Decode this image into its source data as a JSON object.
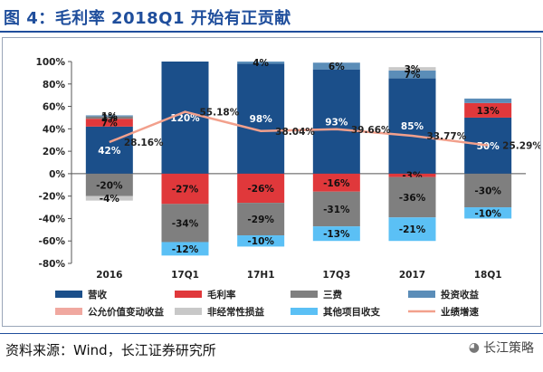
{
  "title": "图 4：毛利率 2018Q1 开始有正贡献",
  "source": "资料来源：Wind，长江证券研究所",
  "watermark": "长江策略",
  "chart_data": {
    "type": "bar",
    "stacked": true,
    "categories": [
      "2016",
      "17Q1",
      "17H1",
      "17Q3",
      "2017",
      "18Q1"
    ],
    "ylim": [
      -80,
      100
    ],
    "yticks": [
      -80,
      -60,
      -40,
      -20,
      0,
      20,
      40,
      60,
      80,
      100
    ],
    "ytick_labels": [
      "-80%",
      "-60%",
      "-40%",
      "-20%",
      "0%",
      "20%",
      "40%",
      "60%",
      "80%",
      "100%"
    ],
    "colors": {
      "营收": "#1b4f8a",
      "毛利率": "#e0383b",
      "三费": "#7f7f7f",
      "投资收益": "#5b8db8",
      "公允价值变动收益": "#f0a8a0",
      "非经常性损益": "#c8c8c8",
      "其他项目收支": "#5bc0f5",
      "业绩增速": "#f2a08c"
    },
    "positive_stacks": [
      {
        "cat": "2016",
        "segments": [
          {
            "series": "营收",
            "value": 42,
            "label": "42%"
          },
          {
            "series": "毛利率",
            "value": 7,
            "label": "7%"
          },
          {
            "series": "三费",
            "value": 2,
            "label": "2%"
          },
          {
            "series": "投资收益",
            "value": 1,
            "label": "1%"
          }
        ]
      },
      {
        "cat": "17Q1",
        "segments": [
          {
            "series": "营收",
            "value": 120,
            "label": "120%"
          }
        ]
      },
      {
        "cat": "17H1",
        "segments": [
          {
            "series": "营收",
            "value": 98,
            "label": "98%"
          },
          {
            "series": "投资收益",
            "value": 4,
            "label": "4%"
          }
        ]
      },
      {
        "cat": "17Q3",
        "segments": [
          {
            "series": "营收",
            "value": 93,
            "label": "93%"
          },
          {
            "series": "投资收益",
            "value": 6,
            "label": "6%"
          }
        ]
      },
      {
        "cat": "2017",
        "segments": [
          {
            "series": "营收",
            "value": 85,
            "label": "85%"
          },
          {
            "series": "投资收益",
            "value": 7,
            "label": "7%"
          },
          {
            "series": "非经常性损益",
            "value": 3,
            "label": "3%"
          }
        ]
      },
      {
        "cat": "18Q1",
        "segments": [
          {
            "series": "营收",
            "value": 50,
            "label": "50%"
          },
          {
            "series": "毛利率",
            "value": 13,
            "label": "13%"
          },
          {
            "series": "投资收益",
            "value": 4,
            "label": ""
          }
        ]
      }
    ],
    "negative_stacks": [
      {
        "cat": "2016",
        "segments": [
          {
            "series": "三费",
            "value": -20,
            "label": "-20%"
          },
          {
            "series": "非经常性损益",
            "value": -4,
            "label": "-4%"
          }
        ]
      },
      {
        "cat": "17Q1",
        "segments": [
          {
            "series": "毛利率",
            "value": -27,
            "label": "-27%"
          },
          {
            "series": "三费",
            "value": -34,
            "label": "-34%"
          },
          {
            "series": "其他项目收支",
            "value": -12,
            "label": "-12%"
          }
        ]
      },
      {
        "cat": "17H1",
        "segments": [
          {
            "series": "毛利率",
            "value": -26,
            "label": "-26%"
          },
          {
            "series": "三费",
            "value": -29,
            "label": "-29%"
          },
          {
            "series": "其他项目收支",
            "value": -10,
            "label": "-10%"
          }
        ]
      },
      {
        "cat": "17Q3",
        "segments": [
          {
            "series": "毛利率",
            "value": -16,
            "label": "-16%"
          },
          {
            "series": "三费",
            "value": -31,
            "label": "-31%"
          },
          {
            "series": "其他项目收支",
            "value": -13,
            "label": "-13%"
          }
        ]
      },
      {
        "cat": "2017",
        "segments": [
          {
            "series": "毛利率",
            "value": -3,
            "label": "-3%"
          },
          {
            "series": "三费",
            "value": -36,
            "label": "-36%"
          },
          {
            "series": "其他项目收支",
            "value": -21,
            "label": "-21%"
          }
        ]
      },
      {
        "cat": "18Q1",
        "segments": [
          {
            "series": "三费",
            "value": -30,
            "label": "-30%"
          },
          {
            "series": "其他项目收支",
            "value": -10,
            "label": "-10%"
          }
        ]
      }
    ],
    "line": {
      "name": "业绩增速",
      "values": [
        28.16,
        55.18,
        38.04,
        39.66,
        33.77,
        25.29
      ],
      "labels": [
        "28.16%",
        "55.18%",
        "38.04%",
        "39.66%",
        "33.77%",
        "25.29%"
      ]
    },
    "legend": [
      {
        "name": "营收",
        "kind": "bar"
      },
      {
        "name": "毛利率",
        "kind": "bar"
      },
      {
        "name": "三费",
        "kind": "bar"
      },
      {
        "name": "投资收益",
        "kind": "bar"
      },
      {
        "name": "公允价值变动收益",
        "kind": "bar"
      },
      {
        "name": "非经常性损益",
        "kind": "bar"
      },
      {
        "name": "其他项目收支",
        "kind": "bar"
      },
      {
        "name": "业绩增速",
        "kind": "line"
      }
    ],
    "legend_position": "bottom",
    "grid": false
  }
}
